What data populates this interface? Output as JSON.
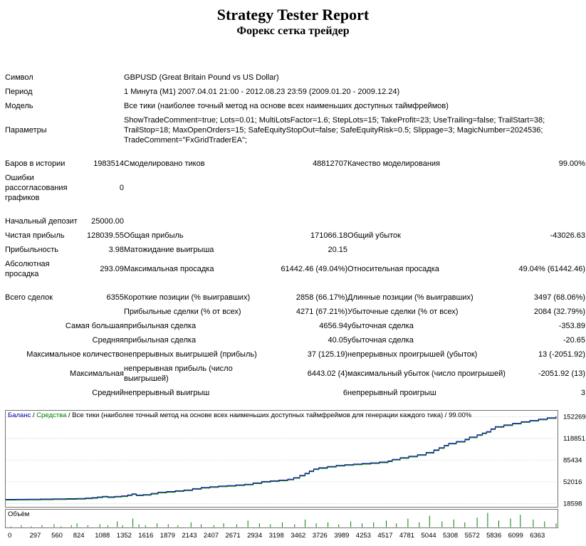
{
  "header": {
    "title": "Strategy Tester Report",
    "subtitle": "Форекс сетка трейдер"
  },
  "table": {
    "rows": [
      {
        "type": "wide",
        "label": "Символ",
        "value": "GBPUSD (Great Britain Pound vs US Dollar)"
      },
      {
        "type": "wide",
        "label": "Период",
        "value": "1 Минута (M1) 2007.04.01 21:00 - 2012.08.23 23:59 (2009.01.20 - 2009.12.24)"
      },
      {
        "type": "wide",
        "label": "Модель",
        "value": "Все тики (наиболее точный метод на основе всех наименьших доступных таймфреймов)"
      },
      {
        "type": "wide",
        "label": "Параметры",
        "lines": [
          "ShowTradeComment=true; Lots=0.01; MultiLotsFactor=1.6; StepLots=15; TakeProfit=23; UseTrailing=false; TrailStart=38;",
          "TrailStop=18; MaxOpenOrders=15; SafeEquityStopOut=false; SafeEquityRisk=0.5; Slippage=3; MagicNumber=2024536;",
          "TradeComment=\"FxGridTraderEA\";"
        ]
      },
      {
        "type": "spacer"
      },
      {
        "type": "stats",
        "cells": [
          "Баров в истории",
          "1983514",
          "Смоделировано тиков",
          "48812707",
          "Качество моделирования",
          "99.00%"
        ]
      },
      {
        "type": "stats",
        "cells": [
          "Ошибки рассогласования графиков",
          "0",
          "",
          "",
          "",
          ""
        ]
      },
      {
        "type": "spacer"
      },
      {
        "type": "stats",
        "cells": [
          "Начальный депозит",
          "25000.00",
          "",
          "",
          "",
          ""
        ]
      },
      {
        "type": "stats",
        "cells": [
          "Чистая прибыль",
          "128039.55",
          "Общая прибыль",
          "171066.18",
          "Общий убыток",
          "-43026.63"
        ]
      },
      {
        "type": "stats",
        "cells": [
          "Прибыльность",
          "3.98",
          "Матожидание выигрыша",
          "20.15",
          "",
          ""
        ]
      },
      {
        "type": "stats",
        "cells": [
          "Абсолютная просадка",
          "293.09",
          "Максимальная просадка",
          "61442.46 (49.04%)",
          "Относительная просадка",
          "49.04% (61442.46)"
        ]
      },
      {
        "type": "spacer"
      },
      {
        "type": "stats",
        "cells": [
          "Всего сделок",
          "6355",
          "Короткие позиции (% выигравших)",
          "2858 (66.17%)",
          "Длинные позиции (% выигравших)",
          "3497 (68.06%)"
        ]
      },
      {
        "type": "stats",
        "cells": [
          "",
          "",
          "Прибыльные сделки (% от всех)",
          "4271 (67.21%)",
          "Убыточные сделки (% от всех)",
          "2084 (32.79%)"
        ]
      },
      {
        "type": "stats",
        "label_align": "right",
        "cells": [
          "Самая большая",
          "",
          "прибыльная сделка",
          "4656.94",
          "убыточная сделка",
          "-353.89"
        ]
      },
      {
        "type": "stats",
        "label_align": "right",
        "cells": [
          "Средняя",
          "",
          "прибыльная сделка",
          "40.05",
          "убыточная сделка",
          "-20.65"
        ]
      },
      {
        "type": "stats",
        "label_align": "right",
        "cells": [
          "Максимальное количество",
          "",
          "непрерывных выигрышей (прибыль)",
          "37 (125.19)",
          "непрерывных проигрышей (убыток)",
          "13 (-2051.92)"
        ]
      },
      {
        "type": "stats",
        "label_align": "right",
        "cells": [
          "Максимальная",
          "",
          "непрерывная прибыль (число выигрышей)",
          "6443.02 (4)",
          "максимальный убыток (число проигрышей)",
          "-2051.92 (13)"
        ]
      },
      {
        "type": "stats",
        "label_align": "right",
        "cells": [
          "Средний",
          "",
          "непрерывный выигрыш",
          "6",
          "непрерывный проигрыш",
          "3"
        ]
      }
    ]
  },
  "chart_data": {
    "type": "line",
    "caption": {
      "balance_label": "Баланс",
      "equity_label": "Средства",
      "model_label": "Все тики (наиболее точный метод на основе всех наименьших доступных таймфреймов для генерации каждого тика)",
      "quality": "99.00%",
      "separator": " / "
    },
    "colors": {
      "balance": "#0000b0",
      "equity": "#008000",
      "volume": "#008000",
      "grid": "#c8c8c8",
      "border": "#737373",
      "tick_text": "#000000"
    },
    "xlim": [
      0,
      6363
    ],
    "ylim": [
      13000,
      162000
    ],
    "y_ticks": [
      152269,
      118851,
      85434,
      52016,
      18598
    ],
    "x_ticks": [
      0,
      297,
      560,
      824,
      1088,
      1352,
      1616,
      1879,
      2143,
      2407,
      2671,
      2934,
      3198,
      3462,
      3726,
      3989,
      4253,
      4517,
      4781,
      5044,
      5308,
      5572,
      5836,
      6099,
      6363
    ],
    "balance_series": {
      "name": "Баланс",
      "points": [
        [
          0,
          25000
        ],
        [
          120,
          25150
        ],
        [
          250,
          25350
        ],
        [
          400,
          25600
        ],
        [
          550,
          25900
        ],
        [
          700,
          26200
        ],
        [
          820,
          26500
        ],
        [
          920,
          27100
        ],
        [
          1000,
          27800
        ],
        [
          1060,
          28800
        ],
        [
          1120,
          29700
        ],
        [
          1180,
          28900
        ],
        [
          1260,
          29600
        ],
        [
          1340,
          30400
        ],
        [
          1410,
          31900
        ],
        [
          1460,
          33600
        ],
        [
          1510,
          31700
        ],
        [
          1590,
          32400
        ],
        [
          1680,
          34300
        ],
        [
          1760,
          36100
        ],
        [
          1860,
          37100
        ],
        [
          1960,
          38300
        ],
        [
          2060,
          39600
        ],
        [
          2160,
          41600
        ],
        [
          2260,
          43400
        ],
        [
          2360,
          44600
        ],
        [
          2460,
          45500
        ],
        [
          2560,
          46300
        ],
        [
          2660,
          47400
        ],
        [
          2760,
          48300
        ],
        [
          2860,
          50400
        ],
        [
          2960,
          52500
        ],
        [
          3060,
          53600
        ],
        [
          3160,
          54700
        ],
        [
          3260,
          56200
        ],
        [
          3330,
          58600
        ],
        [
          3400,
          62000
        ],
        [
          3460,
          65400
        ],
        [
          3510,
          68800
        ],
        [
          3560,
          71800
        ],
        [
          3620,
          73800
        ],
        [
          3720,
          75800
        ],
        [
          3820,
          77300
        ],
        [
          3920,
          78400
        ],
        [
          4020,
          79400
        ],
        [
          4120,
          80400
        ],
        [
          4220,
          81400
        ],
        [
          4320,
          82600
        ],
        [
          4420,
          84200
        ],
        [
          4470,
          86600
        ],
        [
          4560,
          89200
        ],
        [
          4660,
          91400
        ],
        [
          4760,
          93800
        ],
        [
          4860,
          97200
        ],
        [
          4950,
          101200
        ],
        [
          5010,
          104600
        ],
        [
          5070,
          108200
        ],
        [
          5120,
          111400
        ],
        [
          5210,
          114200
        ],
        [
          5310,
          117600
        ],
        [
          5360,
          121000
        ],
        [
          5450,
          124400
        ],
        [
          5510,
          127200
        ],
        [
          5560,
          129400
        ],
        [
          5610,
          133600
        ],
        [
          5660,
          137000
        ],
        [
          5760,
          139600
        ],
        [
          5860,
          142200
        ],
        [
          5960,
          144600
        ],
        [
          6060,
          146600
        ],
        [
          6160,
          148600
        ],
        [
          6260,
          150600
        ],
        [
          6363,
          153040
        ]
      ]
    },
    "equity_series": {
      "name": "Средства",
      "overlaps_balance": true
    },
    "volume": {
      "label": "Объём",
      "max": 15,
      "bars": [
        [
          60,
          1
        ],
        [
          180,
          2
        ],
        [
          297,
          1
        ],
        [
          420,
          2
        ],
        [
          560,
          3
        ],
        [
          640,
          1
        ],
        [
          760,
          2
        ],
        [
          824,
          4
        ],
        [
          950,
          2
        ],
        [
          1088,
          3
        ],
        [
          1180,
          2
        ],
        [
          1290,
          6
        ],
        [
          1352,
          2
        ],
        [
          1470,
          9
        ],
        [
          1540,
          3
        ],
        [
          1616,
          2
        ],
        [
          1750,
          4
        ],
        [
          1879,
          3
        ],
        [
          1990,
          2
        ],
        [
          2143,
          5
        ],
        [
          2260,
          3
        ],
        [
          2407,
          2
        ],
        [
          2520,
          4
        ],
        [
          2671,
          3
        ],
        [
          2800,
          7
        ],
        [
          2934,
          4
        ],
        [
          3060,
          3
        ],
        [
          3198,
          5
        ],
        [
          3340,
          3
        ],
        [
          3462,
          8
        ],
        [
          3590,
          4
        ],
        [
          3726,
          5
        ],
        [
          3850,
          3
        ],
        [
          3989,
          6
        ],
        [
          4120,
          4
        ],
        [
          4253,
          5
        ],
        [
          4400,
          7
        ],
        [
          4517,
          4
        ],
        [
          4650,
          9
        ],
        [
          4781,
          5
        ],
        [
          4900,
          12
        ],
        [
          5044,
          6
        ],
        [
          5180,
          8
        ],
        [
          5308,
          5
        ],
        [
          5450,
          10
        ],
        [
          5572,
          15
        ],
        [
          5700,
          7
        ],
        [
          5836,
          9
        ],
        [
          5950,
          13
        ],
        [
          6099,
          8
        ],
        [
          6230,
          6
        ],
        [
          6363,
          4
        ]
      ]
    }
  }
}
